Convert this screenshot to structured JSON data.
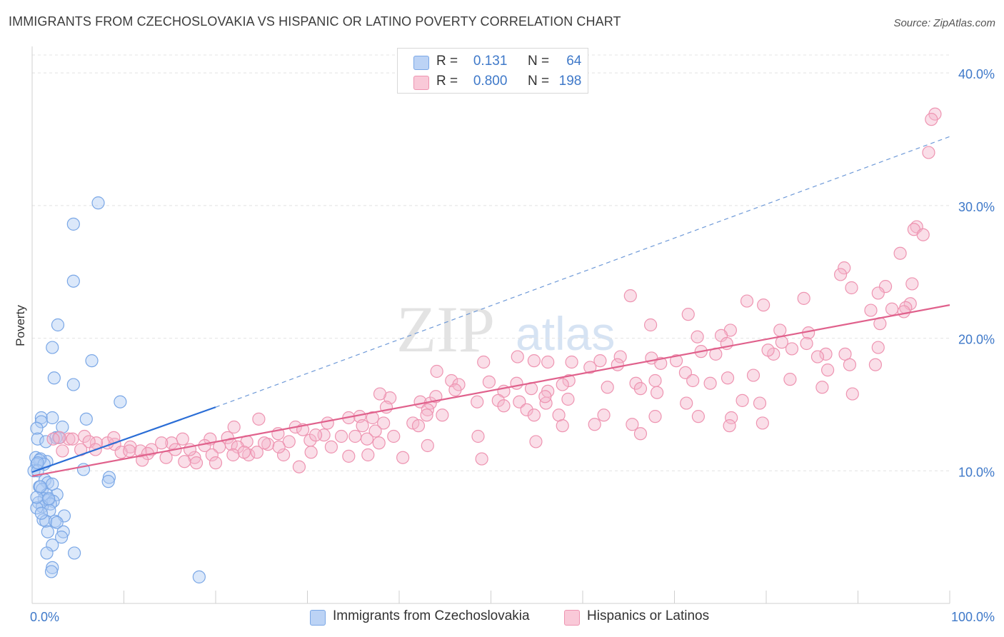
{
  "title": "IMMIGRANTS FROM CZECHOSLOVAKIA VS HISPANIC OR LATINO POVERTY CORRELATION CHART",
  "source": "Source: ZipAtlas.com",
  "watermark": {
    "zip": "ZIP",
    "atlas": "atlas"
  },
  "legend_top": {
    "rows": [
      {
        "r_label": "R =",
        "r_value": "0.131",
        "n_label": "N =",
        "n_value": "64"
      },
      {
        "r_label": "R =",
        "r_value": "0.800",
        "n_label": "N =",
        "n_value": "198"
      }
    ]
  },
  "chart_data": {
    "type": "scatter",
    "title": "IMMIGRANTS FROM CZECHOSLOVAKIA VS HISPANIC OR LATINO POVERTY CORRELATION CHART",
    "xlabel": "",
    "ylabel": "Poverty",
    "xlim": [
      0,
      100
    ],
    "ylim": [
      0,
      42
    ],
    "x_tick_labels": [
      "0.0%",
      "100.0%"
    ],
    "y_ticks": [
      10,
      20,
      30,
      40
    ],
    "y_tick_labels": [
      "10.0%",
      "20.0%",
      "30.0%",
      "40.0%"
    ],
    "grid": true,
    "series": [
      {
        "name": "Immigrants from Czechoslovakia",
        "color": "#8fb5ea",
        "line_color": "#2a6dd6",
        "r": 0.131,
        "n": 64,
        "trend": {
          "solid": [
            [
              0,
              9.9
            ],
            [
              20,
              14.8
            ]
          ],
          "dashed": [
            [
              20,
              14.8
            ],
            [
              100,
              35.2
            ]
          ]
        },
        "points": [
          [
            7.2,
            30.2
          ],
          [
            4.5,
            28.6
          ],
          [
            4.5,
            24.3
          ],
          [
            2.8,
            21.0
          ],
          [
            2.2,
            19.3
          ],
          [
            6.5,
            18.3
          ],
          [
            2.4,
            17.0
          ],
          [
            4.5,
            16.5
          ],
          [
            9.6,
            15.2
          ],
          [
            1.0,
            14.0
          ],
          [
            2.2,
            14.0
          ],
          [
            5.9,
            13.9
          ],
          [
            1.0,
            13.7
          ],
          [
            3.3,
            13.3
          ],
          [
            0.5,
            13.2
          ],
          [
            2.6,
            12.5
          ],
          [
            2.9,
            12.5
          ],
          [
            0.6,
            12.4
          ],
          [
            1.6,
            10.7
          ],
          [
            0.4,
            11.0
          ],
          [
            0.9,
            10.9
          ],
          [
            0.8,
            10.8
          ],
          [
            0.5,
            10.5
          ],
          [
            1.3,
            10.5
          ],
          [
            0.2,
            10.0
          ],
          [
            0.6,
            10.0
          ],
          [
            5.6,
            10.1
          ],
          [
            1.4,
            9.3
          ],
          [
            8.4,
            9.5
          ],
          [
            8.3,
            9.2
          ],
          [
            1.7,
            9.1
          ],
          [
            0.8,
            8.8
          ],
          [
            1.1,
            8.6
          ],
          [
            1.6,
            8.2
          ],
          [
            2.7,
            8.2
          ],
          [
            1.3,
            7.9
          ],
          [
            1.8,
            7.8
          ],
          [
            2.3,
            7.7
          ],
          [
            0.7,
            7.6
          ],
          [
            2.0,
            7.5
          ],
          [
            1.1,
            7.3
          ],
          [
            0.5,
            7.2
          ],
          [
            1.9,
            7.0
          ],
          [
            3.5,
            6.6
          ],
          [
            1.2,
            6.3
          ],
          [
            1.5,
            6.2
          ],
          [
            2.5,
            6.2
          ],
          [
            2.7,
            6.1
          ],
          [
            1.7,
            5.4
          ],
          [
            3.4,
            5.4
          ],
          [
            3.2,
            5.0
          ],
          [
            2.2,
            4.4
          ],
          [
            1.6,
            3.8
          ],
          [
            4.6,
            3.8
          ],
          [
            2.2,
            2.7
          ],
          [
            2.1,
            2.4
          ],
          [
            18.2,
            2.0
          ],
          [
            0.5,
            8.0
          ],
          [
            1.0,
            6.8
          ],
          [
            2.2,
            9.0
          ],
          [
            0.9,
            8.8
          ],
          [
            1.5,
            12.2
          ],
          [
            1.8,
            7.9
          ],
          [
            0.6,
            10.6
          ]
        ]
      },
      {
        "name": "Hispanics or Latinos",
        "color": "#f1a9c0",
        "line_color": "#e0618c",
        "r": 0.8,
        "n": 198,
        "trend": {
          "solid": [
            [
              0,
              9.6
            ],
            [
              100,
              22.5
            ]
          ]
        },
        "points": [
          [
            98.4,
            36.9
          ],
          [
            98.0,
            36.5
          ],
          [
            97.7,
            34.0
          ],
          [
            96.4,
            28.4
          ],
          [
            96.1,
            28.2
          ],
          [
            97.1,
            27.8
          ],
          [
            94.6,
            26.4
          ],
          [
            88.5,
            25.3
          ],
          [
            88.1,
            24.8
          ],
          [
            95.9,
            24.1
          ],
          [
            93.0,
            23.9
          ],
          [
            65.2,
            23.2
          ],
          [
            89.3,
            23.8
          ],
          [
            92.2,
            23.4
          ],
          [
            84.1,
            23.0
          ],
          [
            95.7,
            22.6
          ],
          [
            77.9,
            22.8
          ],
          [
            95.2,
            22.3
          ],
          [
            93.7,
            22.2
          ],
          [
            79.7,
            22.5
          ],
          [
            91.4,
            22.1
          ],
          [
            95.0,
            22.0
          ],
          [
            71.5,
            21.8
          ],
          [
            92.4,
            21.1
          ],
          [
            67.4,
            21.0
          ],
          [
            76.1,
            20.6
          ],
          [
            84.6,
            20.4
          ],
          [
            81.5,
            20.6
          ],
          [
            75.1,
            20.2
          ],
          [
            72.5,
            20.1
          ],
          [
            81.7,
            19.7
          ],
          [
            84.4,
            19.6
          ],
          [
            75.7,
            19.6
          ],
          [
            82.8,
            19.2
          ],
          [
            92.2,
            19.3
          ],
          [
            72.9,
            19.0
          ],
          [
            86.5,
            18.8
          ],
          [
            88.6,
            18.8
          ],
          [
            85.6,
            18.6
          ],
          [
            80.8,
            18.8
          ],
          [
            80.2,
            19.1
          ],
          [
            74.5,
            18.8
          ],
          [
            70.2,
            18.3
          ],
          [
            64.1,
            18.6
          ],
          [
            67.5,
            18.5
          ],
          [
            68.5,
            18.1
          ],
          [
            61.9,
            18.3
          ],
          [
            89.1,
            18.0
          ],
          [
            91.9,
            18.0
          ],
          [
            86.7,
            17.6
          ],
          [
            60.8,
            17.8
          ],
          [
            58.8,
            18.2
          ],
          [
            63.8,
            18.0
          ],
          [
            71.2,
            17.4
          ],
          [
            56.2,
            18.2
          ],
          [
            54.7,
            18.3
          ],
          [
            52.9,
            18.6
          ],
          [
            49.2,
            18.2
          ],
          [
            78.6,
            17.2
          ],
          [
            75.8,
            17.0
          ],
          [
            82.6,
            16.9
          ],
          [
            67.9,
            16.8
          ],
          [
            65.8,
            16.6
          ],
          [
            73.9,
            16.6
          ],
          [
            72.0,
            16.8
          ],
          [
            52.8,
            16.6
          ],
          [
            58.5,
            16.8
          ],
          [
            62.7,
            16.3
          ],
          [
            57.8,
            16.5
          ],
          [
            49.8,
            16.7
          ],
          [
            54.4,
            16.2
          ],
          [
            56.2,
            16.0
          ],
          [
            44.1,
            17.5
          ],
          [
            45.7,
            16.8
          ],
          [
            46.5,
            16.5
          ],
          [
            51.4,
            16.0
          ],
          [
            66.3,
            16.2
          ],
          [
            68.1,
            15.9
          ],
          [
            86.1,
            16.3
          ],
          [
            89.4,
            15.8
          ],
          [
            46.1,
            16.1
          ],
          [
            56.0,
            15.1
          ],
          [
            50.8,
            15.3
          ],
          [
            48.5,
            15.2
          ],
          [
            53.1,
            15.2
          ],
          [
            55.9,
            15.6
          ],
          [
            58.4,
            15.4
          ],
          [
            79.3,
            15.1
          ],
          [
            77.4,
            15.3
          ],
          [
            71.3,
            15.1
          ],
          [
            51.4,
            14.9
          ],
          [
            53.9,
            14.6
          ],
          [
            54.7,
            14.2
          ],
          [
            57.4,
            14.2
          ],
          [
            62.3,
            14.2
          ],
          [
            42.3,
            15.2
          ],
          [
            43.4,
            15.1
          ],
          [
            43.1,
            14.6
          ],
          [
            39.0,
            15.5
          ],
          [
            37.9,
            15.8
          ],
          [
            38.6,
            14.8
          ],
          [
            43.0,
            14.2
          ],
          [
            35.7,
            14.1
          ],
          [
            36.0,
            13.4
          ],
          [
            37.1,
            14.0
          ],
          [
            38.3,
            13.6
          ],
          [
            44.7,
            14.2
          ],
          [
            67.9,
            14.1
          ],
          [
            72.6,
            14.1
          ],
          [
            65.4,
            13.5
          ],
          [
            76.2,
            14.0
          ],
          [
            34.5,
            14.0
          ],
          [
            41.5,
            13.6
          ],
          [
            42.1,
            13.4
          ],
          [
            33.7,
            12.6
          ],
          [
            32.2,
            13.6
          ],
          [
            37.4,
            13.0
          ],
          [
            31.8,
            12.7
          ],
          [
            24.7,
            13.9
          ],
          [
            28.7,
            13.3
          ],
          [
            29.5,
            13.1
          ],
          [
            26.8,
            12.8
          ],
          [
            22.0,
            13.3
          ],
          [
            35.2,
            12.6
          ],
          [
            30.3,
            12.3
          ],
          [
            39.4,
            12.6
          ],
          [
            48.6,
            12.6
          ],
          [
            54.9,
            12.2
          ],
          [
            61.3,
            13.5
          ],
          [
            57.8,
            13.4
          ],
          [
            66.3,
            12.8
          ],
          [
            76.0,
            13.4
          ],
          [
            79.6,
            13.6
          ],
          [
            28.0,
            12.2
          ],
          [
            25.7,
            12.0
          ],
          [
            23.4,
            12.2
          ],
          [
            21.3,
            12.5
          ],
          [
            19.4,
            12.4
          ],
          [
            16.4,
            12.4
          ],
          [
            15.2,
            12.1
          ],
          [
            14.1,
            12.1
          ],
          [
            10.7,
            11.8
          ],
          [
            9.0,
            12.0
          ],
          [
            5.7,
            12.6
          ],
          [
            4.0,
            12.4
          ],
          [
            3.0,
            12.5
          ],
          [
            8.2,
            12.1
          ],
          [
            7.0,
            12.1
          ],
          [
            6.2,
            12.2
          ],
          [
            4.4,
            12.4
          ],
          [
            8.9,
            12.5
          ],
          [
            13.0,
            11.6
          ],
          [
            11.8,
            11.5
          ],
          [
            12.6,
            11.3
          ],
          [
            14.6,
            11.0
          ],
          [
            17.7,
            11.0
          ],
          [
            20.4,
            11.8
          ],
          [
            18.8,
            11.9
          ],
          [
            19.6,
            11.2
          ],
          [
            21.7,
            12.0
          ],
          [
            23.6,
            11.2
          ],
          [
            27.4,
            11.2
          ],
          [
            22.4,
            11.8
          ],
          [
            25.3,
            12.1
          ],
          [
            12.0,
            10.8
          ],
          [
            9.7,
            11.4
          ],
          [
            10.6,
            11.5
          ],
          [
            6.9,
            11.6
          ],
          [
            5.3,
            11.6
          ],
          [
            3.3,
            11.5
          ],
          [
            2.3,
            12.4
          ],
          [
            16.6,
            10.7
          ],
          [
            20.0,
            10.6
          ],
          [
            21.9,
            11.2
          ],
          [
            17.2,
            11.6
          ],
          [
            24.5,
            11.4
          ],
          [
            15.6,
            11.6
          ],
          [
            30.4,
            11.4
          ],
          [
            36.6,
            11.2
          ],
          [
            40.4,
            11.0
          ],
          [
            29.1,
            10.3
          ],
          [
            23.1,
            11.4
          ],
          [
            34.5,
            11.1
          ],
          [
            17.9,
            10.6
          ],
          [
            32.6,
            11.8
          ],
          [
            49.0,
            10.9
          ],
          [
            43.1,
            11.9
          ],
          [
            37.8,
            12.1
          ],
          [
            30.9,
            12.7
          ],
          [
            26.9,
            11.8
          ],
          [
            36.5,
            12.4
          ],
          [
            44.0,
            15.6
          ]
        ]
      }
    ]
  },
  "legend_bottom": {
    "items": [
      {
        "label": "Immigrants from Czechoslovakia"
      },
      {
        "label": "Hispanics or Latinos"
      }
    ]
  }
}
